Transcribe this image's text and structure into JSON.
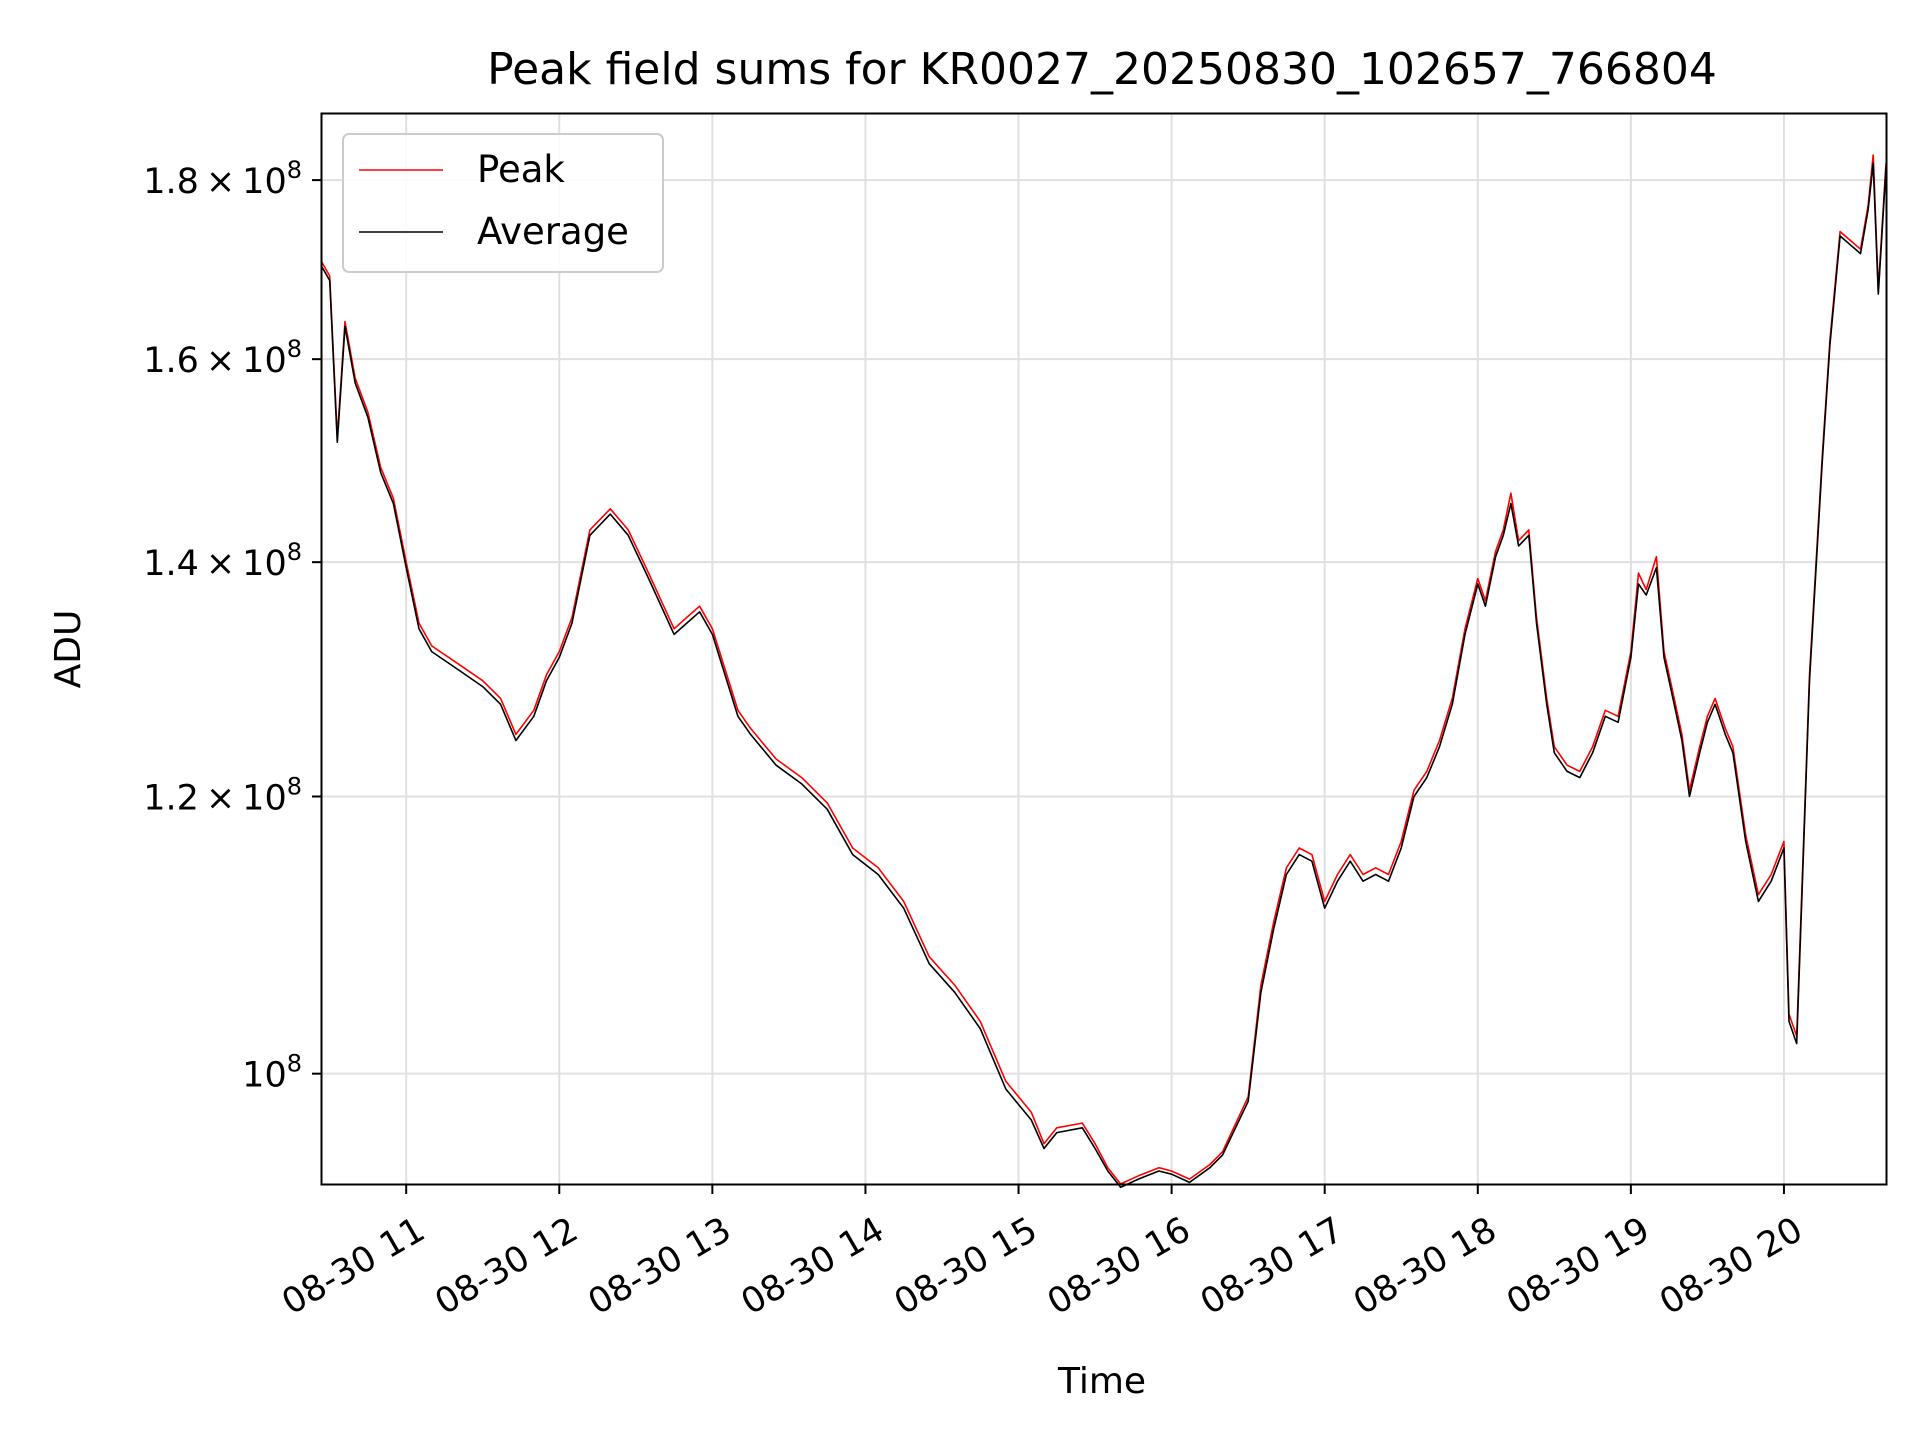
{
  "chart_data": {
    "type": "line",
    "title": "Peak field sums for KR0027_20250830_102657_766804",
    "xlabel": "Time",
    "ylabel": "ADU",
    "y_scale": "log",
    "xlim": [
      "08-30 10:27",
      "08-30 20:40"
    ],
    "ylim": [
      93000000,
      188000000
    ],
    "grid": true,
    "legend_position": "upper-left",
    "x_ticks": [
      {
        "value": "08-30 11:00",
        "label": "08-30 11"
      },
      {
        "value": "08-30 12:00",
        "label": "08-30 12"
      },
      {
        "value": "08-30 13:00",
        "label": "08-30 13"
      },
      {
        "value": "08-30 14:00",
        "label": "08-30 14"
      },
      {
        "value": "08-30 15:00",
        "label": "08-30 15"
      },
      {
        "value": "08-30 16:00",
        "label": "08-30 16"
      },
      {
        "value": "08-30 17:00",
        "label": "08-30 17"
      },
      {
        "value": "08-30 18:00",
        "label": "08-30 18"
      },
      {
        "value": "08-30 19:00",
        "label": "08-30 19"
      },
      {
        "value": "08-30 20:00",
        "label": "08-30 20"
      }
    ],
    "y_ticks": [
      {
        "value": 100000000,
        "mantissa": "",
        "exponent": "8"
      },
      {
        "value": 120000000,
        "mantissa": "1.2",
        "exponent": "8"
      },
      {
        "value": 140000000,
        "mantissa": "1.4",
        "exponent": "8"
      },
      {
        "value": 160000000,
        "mantissa": "1.6",
        "exponent": "8"
      },
      {
        "value": 180000000,
        "mantissa": "1.8",
        "exponent": "8"
      }
    ],
    "x": [
      "08-30 10:27",
      "08-30 10:30",
      "08-30 10:33",
      "08-30 10:36",
      "08-30 10:40",
      "08-30 10:45",
      "08-30 10:50",
      "08-30 10:55",
      "08-30 11:00",
      "08-30 11:05",
      "08-30 11:10",
      "08-30 11:20",
      "08-30 11:30",
      "08-30 11:37",
      "08-30 11:43",
      "08-30 11:50",
      "08-30 11:55",
      "08-30 12:00",
      "08-30 12:05",
      "08-30 12:12",
      "08-30 12:20",
      "08-30 12:27",
      "08-30 12:35",
      "08-30 12:45",
      "08-30 12:50",
      "08-30 12:55",
      "08-30 13:00",
      "08-30 13:10",
      "08-30 13:15",
      "08-30 13:25",
      "08-30 13:35",
      "08-30 13:45",
      "08-30 13:55",
      "08-30 14:05",
      "08-30 14:15",
      "08-30 14:25",
      "08-30 14:35",
      "08-30 14:45",
      "08-30 14:55",
      "08-30 15:05",
      "08-30 15:10",
      "08-30 15:15",
      "08-30 15:25",
      "08-30 15:30",
      "08-30 15:35",
      "08-30 15:40",
      "08-30 15:47",
      "08-30 15:55",
      "08-30 16:00",
      "08-30 16:07",
      "08-30 16:15",
      "08-30 16:20",
      "08-30 16:30",
      "08-30 16:35",
      "08-30 16:40",
      "08-30 16:45",
      "08-30 16:50",
      "08-30 16:55",
      "08-30 17:00",
      "08-30 17:05",
      "08-30 17:10",
      "08-30 17:15",
      "08-30 17:20",
      "08-30 17:25",
      "08-30 17:30",
      "08-30 17:35",
      "08-30 17:40",
      "08-30 17:45",
      "08-30 17:50",
      "08-30 17:55",
      "08-30 18:00",
      "08-30 18:03",
      "08-30 18:07",
      "08-30 18:10",
      "08-30 18:13",
      "08-30 18:16",
      "08-30 18:20",
      "08-30 18:23",
      "08-30 18:27",
      "08-30 18:30",
      "08-30 18:35",
      "08-30 18:40",
      "08-30 18:45",
      "08-30 18:50",
      "08-30 18:55",
      "08-30 19:00",
      "08-30 19:03",
      "08-30 19:06",
      "08-30 19:10",
      "08-30 19:13",
      "08-30 19:17",
      "08-30 19:20",
      "08-30 19:23",
      "08-30 19:27",
      "08-30 19:30",
      "08-30 19:33",
      "08-30 19:37",
      "08-30 19:40",
      "08-30 19:45",
      "08-30 19:50",
      "08-30 19:55",
      "08-30 19:57",
      "08-30 20:00",
      "08-30 20:02",
      "08-30 20:05",
      "08-30 20:10",
      "08-30 20:15",
      "08-30 20:18",
      "08-30 20:22",
      "08-30 20:26",
      "08-30 20:30",
      "08-30 20:33",
      "08-30 20:35",
      "08-30 20:37",
      "08-30 20:40"
    ],
    "series": [
      {
        "name": "Peak",
        "color": "#ff0000",
        "values": [
          170500000,
          169000000,
          152000000,
          164000000,
          158000000,
          154500000,
          149000000,
          146000000,
          140000000,
          134500000,
          132500000,
          131000000,
          129500000,
          128000000,
          125000000,
          127000000,
          130000000,
          132000000,
          135000000,
          143000000,
          145000000,
          143000000,
          139000000,
          134000000,
          135000000,
          136000000,
          134000000,
          127000000,
          125500000,
          123000000,
          121500000,
          119500000,
          116000000,
          114500000,
          112000000,
          108000000,
          106000000,
          103500000,
          99500000,
          97500000,
          95500000,
          96500000,
          96800000,
          95500000,
          94000000,
          93000000,
          93500000,
          94000000,
          93800000,
          93300000,
          94200000,
          95000000,
          98500000,
          106000000,
          110500000,
          114500000,
          116000000,
          115500000,
          112000000,
          114000000,
          115500000,
          114000000,
          114500000,
          114000000,
          116500000,
          120500000,
          122000000,
          124500000,
          128000000,
          134000000,
          138500000,
          136500000,
          141000000,
          143000000,
          146500000,
          142000000,
          143000000,
          135000000,
          128000000,
          124000000,
          122500000,
          122000000,
          124000000,
          127000000,
          126500000,
          132000000,
          139000000,
          137500000,
          140500000,
          132000000,
          128000000,
          125000000,
          120500000,
          124000000,
          126500000,
          128000000,
          125500000,
          124000000,
          117000000,
          112500000,
          114000000,
          115000000,
          116500000,
          104000000,
          102500000,
          130000000,
          150000000,
          162000000,
          174000000,
          173000000,
          172000000,
          177000000,
          183000000,
          167500000,
          182000000
        ]
      },
      {
        "name": "Average",
        "color": "#000000",
        "values": [
          170000000,
          168500000,
          151500000,
          163500000,
          157500000,
          154000000,
          148500000,
          145500000,
          139500000,
          134000000,
          132000000,
          130500000,
          129000000,
          127500000,
          124500000,
          126500000,
          129500000,
          131500000,
          134500000,
          142500000,
          144500000,
          142500000,
          138500000,
          133500000,
          134500000,
          135500000,
          133500000,
          126500000,
          125000000,
          122500000,
          121000000,
          119000000,
          115500000,
          114000000,
          111500000,
          107500000,
          105500000,
          103000000,
          99000000,
          97000000,
          95200000,
          96200000,
          96500000,
          95200000,
          93800000,
          92800000,
          93300000,
          93800000,
          93600000,
          93100000,
          94000000,
          94800000,
          98200000,
          105500000,
          110000000,
          114000000,
          115500000,
          115000000,
          111500000,
          113500000,
          115000000,
          113500000,
          114000000,
          113500000,
          116000000,
          120000000,
          121500000,
          124000000,
          127500000,
          133500000,
          138000000,
          136000000,
          140500000,
          142500000,
          145500000,
          141500000,
          142500000,
          134500000,
          127500000,
          123500000,
          122000000,
          121500000,
          123500000,
          126500000,
          126000000,
          131500000,
          138000000,
          137000000,
          139500000,
          131500000,
          127500000,
          124500000,
          120000000,
          123500000,
          126000000,
          127500000,
          125000000,
          123500000,
          116500000,
          112000000,
          113500000,
          114500000,
          116000000,
          103500000,
          102000000,
          129500000,
          149500000,
          161500000,
          173500000,
          172500000,
          171500000,
          176500000,
          182000000,
          167000000,
          181500000
        ]
      }
    ]
  }
}
